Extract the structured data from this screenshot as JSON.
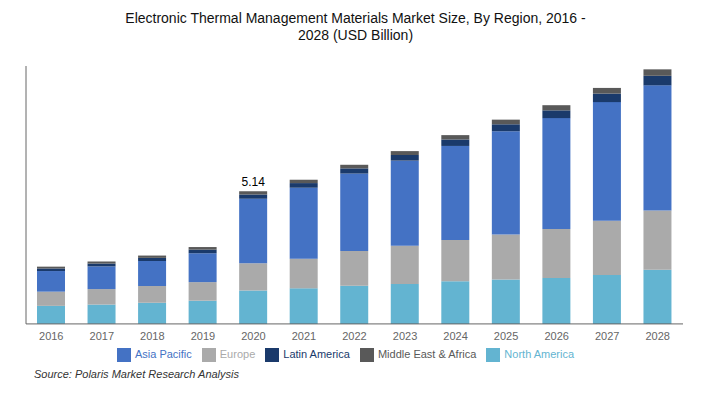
{
  "chart_data": {
    "type": "bar",
    "stacked": true,
    "title": "Electronic Thermal Management Materials Market Size, By Region, 2016 -\n2028 (USD Billion)",
    "source": "Source: Polaris Market Research Analysis",
    "categories": [
      "2016",
      "2017",
      "2018",
      "2019",
      "2020",
      "2021",
      "2022",
      "2023",
      "2024",
      "2025",
      "2026",
      "2027",
      "2028"
    ],
    "series": [
      {
        "name": "North America",
        "color": "#63b4d1",
        "values": [
          0.7,
          0.75,
          0.82,
          0.9,
          1.3,
          1.38,
          1.48,
          1.55,
          1.65,
          1.72,
          1.78,
          1.9,
          2.1
        ]
      },
      {
        "name": "Europe",
        "color": "#aaaaaa",
        "values": [
          0.55,
          0.6,
          0.65,
          0.72,
          1.05,
          1.15,
          1.35,
          1.48,
          1.6,
          1.75,
          1.9,
          2.1,
          2.3
        ]
      },
      {
        "name": "Asia Pacific",
        "color": "#4472c4",
        "values": [
          0.8,
          0.88,
          0.97,
          1.12,
          2.5,
          2.75,
          3.0,
          3.3,
          3.65,
          4.0,
          4.3,
          4.6,
          4.85
        ]
      },
      {
        "name": "Latin America",
        "color": "#1a3a6b",
        "values": [
          0.1,
          0.11,
          0.12,
          0.14,
          0.17,
          0.18,
          0.2,
          0.22,
          0.25,
          0.27,
          0.3,
          0.33,
          0.37
        ]
      },
      {
        "name": "Middle East & Africa",
        "color": "#595959",
        "values": [
          0.07,
          0.08,
          0.09,
          0.1,
          0.12,
          0.13,
          0.14,
          0.15,
          0.17,
          0.18,
          0.2,
          0.22,
          0.25
        ]
      }
    ],
    "annotations": [
      {
        "text": "5.14",
        "x": "2020"
      }
    ],
    "ylim": [
      0,
      10
    ],
    "tick_labels": "x",
    "grid": false,
    "legend": "bottom"
  }
}
